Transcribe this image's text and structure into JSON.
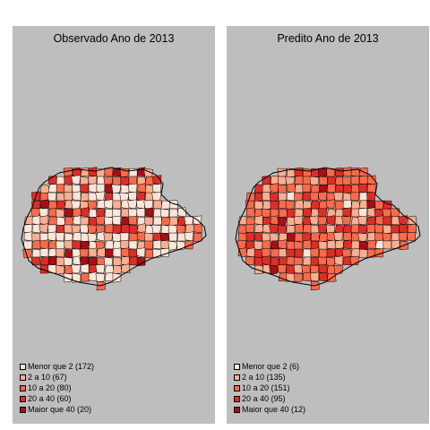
{
  "panels": [
    {
      "title": "Observado Ano de 2013",
      "legend": [
        {
          "label": "Menor que 2 (172)",
          "color": "#fee5d9"
        },
        {
          "label": "2 a 10 (67)",
          "color": "#fcae91"
        },
        {
          "label": "10 a 20 (80)",
          "color": "#fb6a4a"
        },
        {
          "label": "20 a 40 (60)",
          "color": "#de2d26"
        },
        {
          "label": "Maior que 40 (20)",
          "color": "#a50f15"
        }
      ]
    },
    {
      "title": "Predito Ano de 2013",
      "legend": [
        {
          "label": "Menor que 2 (6)",
          "color": "#fee5d9"
        },
        {
          "label": "2 a 10 (135)",
          "color": "#fcae91"
        },
        {
          "label": "10 a 20 (151)",
          "color": "#fb6a4a"
        },
        {
          "label": "20 a 40 (95)",
          "color": "#de2d26"
        },
        {
          "label": "Maior que 40 (12)",
          "color": "#a50f15"
        }
      ]
    }
  ]
}
